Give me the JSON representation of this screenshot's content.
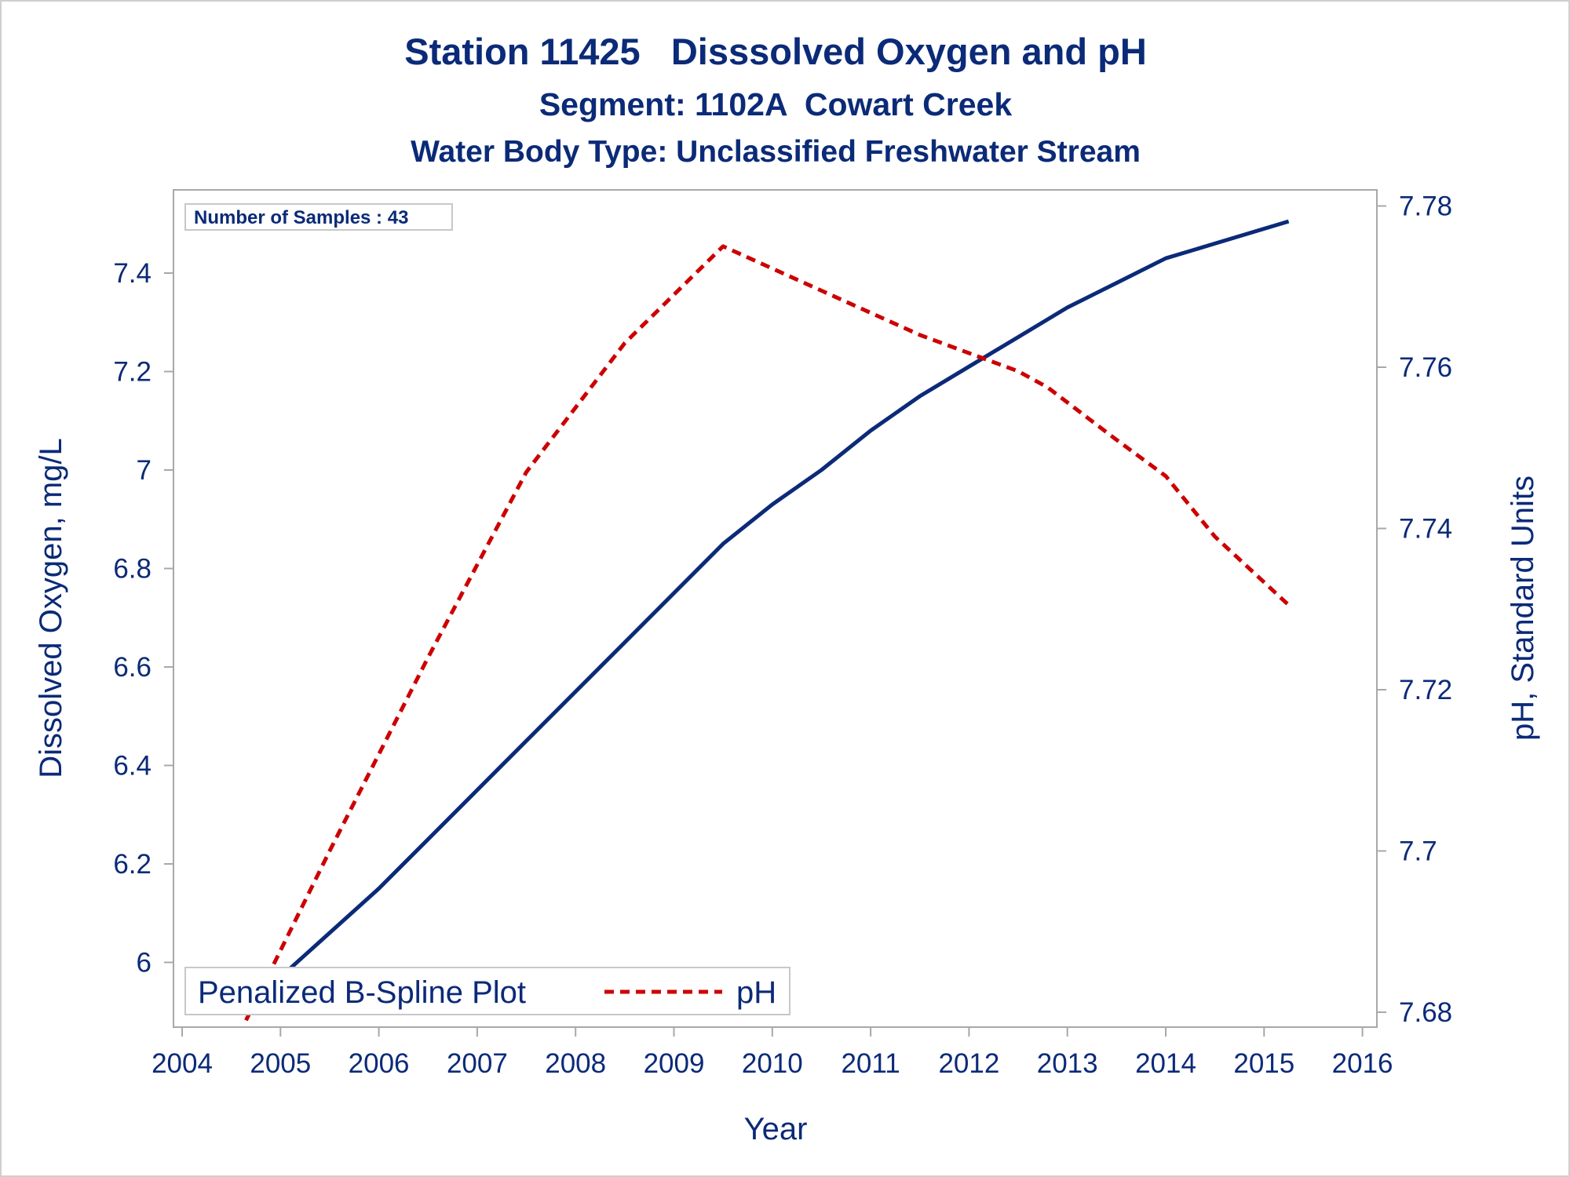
{
  "chart_data": {
    "type": "line",
    "title": "Station 11425   Disssolved Oxygen and pH",
    "subtitle": "Segment: 1102A  Cowart Creek",
    "subtitle2": "Water Body Type: Unclassified Freshwater Stream",
    "xlabel": "Year",
    "ylabel_left": "Dissolved Oxygen, mg/L",
    "ylabel_right": "pH, Standard Units",
    "xlim": [
      2004,
      2016
    ],
    "ylim_left": [
      5.9,
      7.5
    ],
    "ylim_right": [
      7.68,
      7.78
    ],
    "x_ticks": [
      "2004",
      "2005",
      "2006",
      "2007",
      "2008",
      "2009",
      "2010",
      "2011",
      "2012",
      "2013",
      "2014",
      "2015",
      "2016"
    ],
    "y_left_ticks": [
      "6",
      "6.2",
      "6.4",
      "6.6",
      "6.8",
      "7",
      "7.2",
      "7.4"
    ],
    "y_right_ticks": [
      "7.68",
      "7.7",
      "7.72",
      "7.74",
      "7.76",
      "7.78"
    ],
    "annotation": "Number of Samples : 43",
    "legend": {
      "position": "bottom-left",
      "title": "Penalized B-Spline Plot",
      "entries": [
        {
          "label": "pH"
        }
      ]
    },
    "grid": false,
    "colors": {
      "text": "#0b2a78",
      "do_line": "#0b2a78",
      "ph_line": "#cc0000",
      "frame": "#a8a8a8"
    },
    "series": [
      {
        "id": "do",
        "axis": "left",
        "style": "solid",
        "x": [
          2004.65,
          2005.0,
          2005.5,
          2006.0,
          2006.5,
          2007.0,
          2007.5,
          2008.0,
          2008.5,
          2009.0,
          2009.5,
          2010.0,
          2010.5,
          2011.0,
          2011.5,
          2012.0,
          2012.5,
          2013.0,
          2013.5,
          2014.0,
          2014.5,
          2015.0,
          2015.25
        ],
        "values": [
          5.9,
          5.97,
          6.06,
          6.15,
          6.25,
          6.35,
          6.45,
          6.55,
          6.65,
          6.75,
          6.85,
          6.93,
          7.0,
          7.08,
          7.15,
          7.21,
          7.27,
          7.33,
          7.38,
          7.43,
          7.46,
          7.49,
          7.505
        ]
      },
      {
        "id": "ph",
        "name": "pH",
        "axis": "right",
        "style": "dashed",
        "x": [
          2004.65,
          2005.5,
          2006.5,
          2007.5,
          2008.5,
          2009.5,
          2010.5,
          2011.5,
          2012.5,
          2012.8,
          2013.5,
          2014.0,
          2014.5,
          2015.25
        ],
        "values": [
          7.679,
          7.7,
          7.724,
          7.747,
          7.763,
          7.775,
          7.7695,
          7.764,
          7.7595,
          7.7575,
          7.751,
          7.7465,
          7.739,
          7.7305
        ]
      }
    ]
  }
}
